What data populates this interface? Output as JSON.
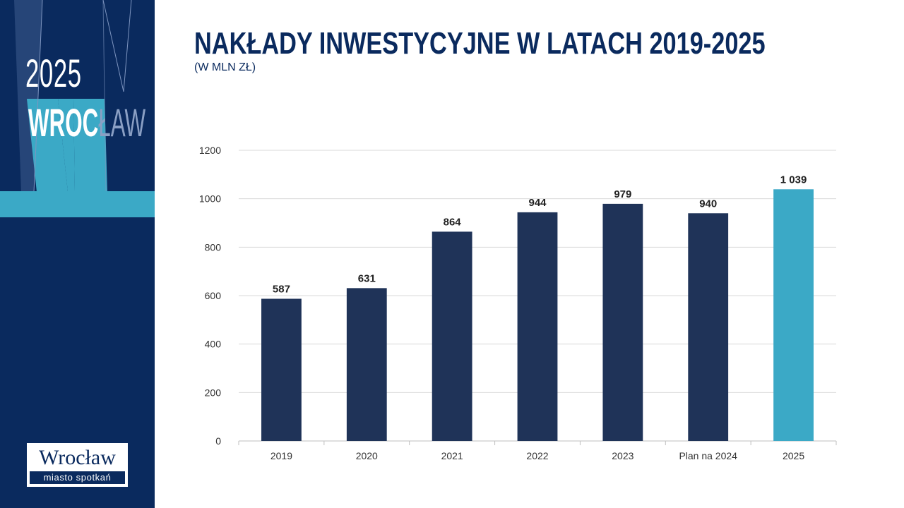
{
  "sidebar": {
    "year": "2025",
    "city_part1": "WROC",
    "city_part2": "ŁAW",
    "logo": {
      "name": "Wrocław",
      "tagline": "miasto spotkań"
    }
  },
  "colors": {
    "sidebar_bg": "#0a2a5e",
    "accent": "#3ba9c6",
    "bar_main": "#1f3358",
    "bar_highlight": "#3ba9c6"
  },
  "chart_data": {
    "type": "bar",
    "title": "NAKŁADY INWESTYCYJNE W LATACH 2019-2025",
    "subtitle": "(W MLN ZŁ)",
    "categories": [
      "2019",
      "2020",
      "2021",
      "2022",
      "2023",
      "Plan na 2024",
      "2025"
    ],
    "values": [
      587,
      631,
      864,
      944,
      979,
      940,
      1039
    ],
    "data_labels": [
      "587",
      "631",
      "864",
      "944",
      "979",
      "940",
      "1 039"
    ],
    "highlight_index": 6,
    "ylim": [
      0,
      1200
    ],
    "yticks": [
      0,
      200,
      400,
      600,
      800,
      1000,
      1200
    ],
    "grid": true
  }
}
